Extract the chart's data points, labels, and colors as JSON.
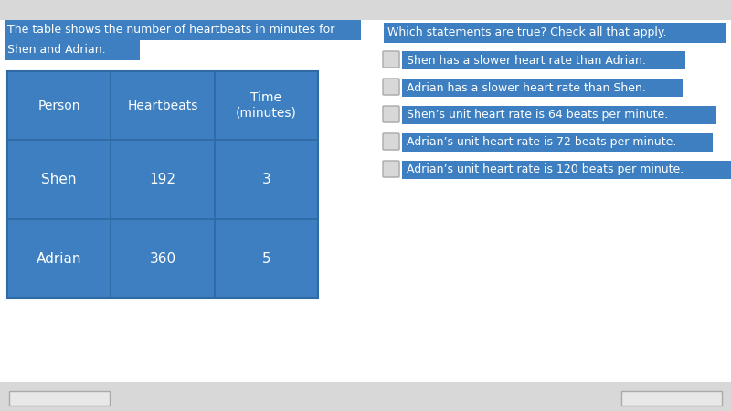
{
  "page_bg": "#ffffff",
  "top_bar_bg": "#d8d8d8",
  "bottom_bar_bg": "#f0f0f0",
  "table_bg": "#3d7fc1",
  "table_line_color": "#2e6aa3",
  "cell_text_color": "#ffffff",
  "cell_text_color_dark": "#2a5a8a",
  "header_text": [
    "Person",
    "Heartbeats",
    "Time\n(minutes)"
  ],
  "row1": [
    "Shen",
    "192",
    "3"
  ],
  "row2": [
    "Adrian",
    "360",
    "5"
  ],
  "title_line1": "The table shows the number of heartbeats in minutes for",
  "title_line2": "Shen and Adrian.",
  "title_bg": "#3d7fc1",
  "title_text_color": "#ffffff",
  "question_text": "Which statements are true? Check all that apply.",
  "question_bg": "#3d7fc1",
  "question_text_color": "#ffffff",
  "options": [
    "Shen has a slower heart rate than Adrian.",
    "Adrian has a slower heart rate than Shen.",
    "Shen’s unit heart rate is 64 beats per minute.",
    "Adrian’s unit heart rate is 72 beats per minute.",
    "Adrian’s unit heart rate is 120 beats per minute."
  ],
  "option_bg": "#3d7fc1",
  "option_text_color": "#ffffff",
  "checkbox_bg": "#d8d8d8",
  "checkbox_edge": "#aaaaaa"
}
